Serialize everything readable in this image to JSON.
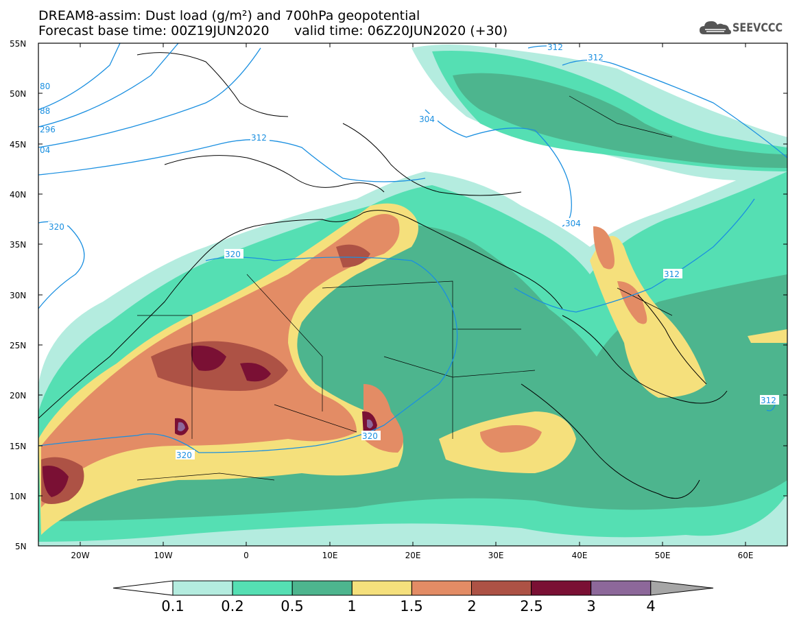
{
  "header": {
    "title_line1": "DREAM8-assim: Dust load (g/m²) and 700hPa geopotential",
    "title_line2": "Forecast base time: 00Z19JUN2020      valid time: 06Z20JUN2020 (+30)",
    "logo_text": "SEEVCCC",
    "logo_icon": "cloud-icon"
  },
  "map": {
    "region": "North Africa, Europe and Middle East",
    "lat_range": [
      5,
      55
    ],
    "lon_range": [
      -25,
      65
    ],
    "lat_labels": [
      "55N",
      "50N",
      "45N",
      "40N",
      "35N",
      "30N",
      "25N",
      "20N",
      "15N",
      "10N",
      "5N"
    ],
    "lon_labels": [
      "20W",
      "10W",
      "0",
      "10E",
      "20E",
      "30E",
      "40E",
      "50E",
      "60E"
    ],
    "contour_labels": [
      "312",
      "312",
      "304",
      "312",
      "304",
      "312",
      "312",
      "320",
      "320",
      "320",
      "320",
      "80",
      "88",
      "296",
      "04"
    ],
    "contour_color": "#1a8fe0"
  },
  "colorbar": {
    "levels": [
      "0.1",
      "0.2",
      "0.5",
      "1",
      "1.5",
      "2",
      "2.5",
      "3",
      "4"
    ],
    "colors": [
      "#ffffff",
      "#b4ecdf",
      "#55dfb3",
      "#4db58e",
      "#f5e07c",
      "#e38c65",
      "#ad5245",
      "#7a1034",
      "#8d689a",
      "#a6a6a6"
    ]
  }
}
